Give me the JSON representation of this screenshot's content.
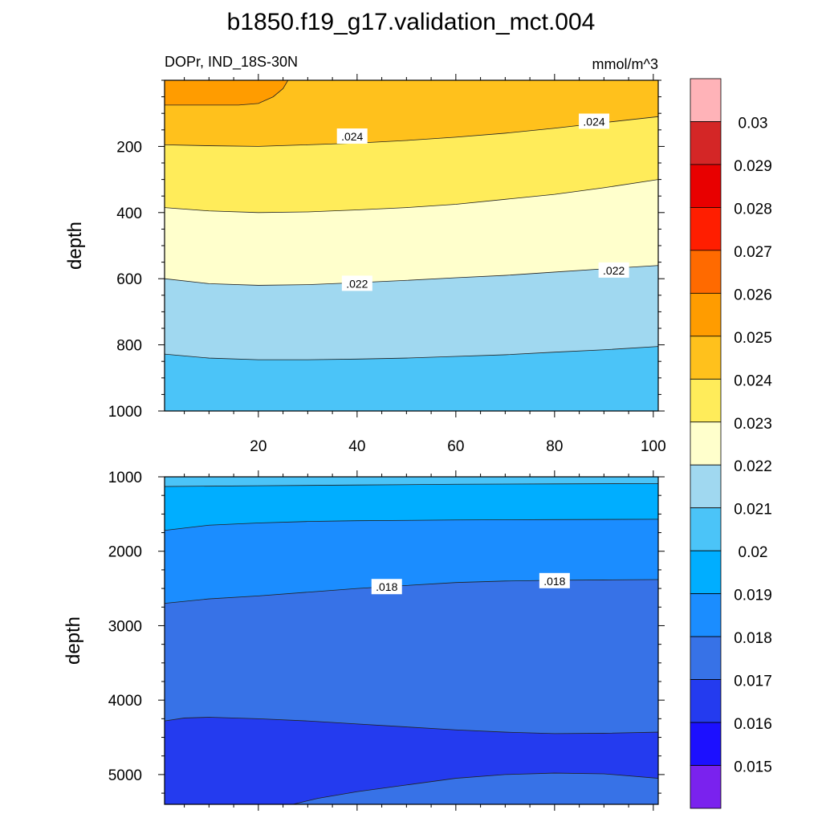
{
  "figure": {
    "title": "b1850.f19_g17.validation_mct.004",
    "left_string": "DOPr, IND_18S-30N",
    "right_string": "mmol/m^3"
  },
  "chart_data": [
    {
      "type": "contour",
      "panel": "upper",
      "title": "b1850.f19_g17.validation_mct.004",
      "left_string": "DOPr, IND_18S-30N",
      "right_string": "mmol/m^3",
      "xlabel": "",
      "ylabel": "depth",
      "xlim": [
        1,
        101
      ],
      "ylim": [
        0,
        1000
      ],
      "y_reversed": true,
      "x_ticks": [
        20,
        40,
        60,
        80,
        100
      ],
      "y_ticks": [
        200,
        400,
        600,
        800,
        1000
      ],
      "contour_lines": [
        {
          "level": 0.025,
          "x": [
            1,
            16,
            20,
            23,
            25,
            26
          ],
          "depth": [
            75,
            75,
            70,
            50,
            25,
            0
          ]
        },
        {
          "level": 0.024,
          "x": [
            1,
            10,
            20,
            30,
            40,
            50,
            60,
            70,
            80,
            90,
            101
          ],
          "depth": [
            195,
            198,
            200,
            195,
            190,
            182,
            172,
            160,
            145,
            128,
            110
          ]
        },
        {
          "level": 0.023,
          "x": [
            1,
            10,
            20,
            30,
            40,
            50,
            60,
            70,
            80,
            90,
            101
          ],
          "depth": [
            385,
            395,
            400,
            398,
            392,
            385,
            375,
            360,
            345,
            325,
            300
          ]
        },
        {
          "level": 0.022,
          "x": [
            1,
            10,
            20,
            30,
            40,
            50,
            60,
            70,
            80,
            90,
            101
          ],
          "depth": [
            600,
            615,
            620,
            618,
            612,
            605,
            597,
            590,
            580,
            570,
            560
          ]
        },
        {
          "level": 0.021,
          "x": [
            1,
            10,
            20,
            30,
            40,
            50,
            60,
            70,
            80,
            90,
            101
          ],
          "depth": [
            828,
            840,
            845,
            845,
            843,
            840,
            835,
            830,
            822,
            815,
            805
          ]
        }
      ],
      "contour_labels": [
        {
          "text": ".024",
          "x": 39,
          "depth": 170
        },
        {
          "text": ".024",
          "x": 88,
          "depth": 125
        },
        {
          "text": ".022",
          "x": 40,
          "depth": 615
        },
        {
          "text": ".022",
          "x": 92,
          "depth": 575
        }
      ]
    },
    {
      "type": "contour",
      "panel": "lower",
      "xlabel": "",
      "ylabel": "depth",
      "xlim": [
        1,
        101
      ],
      "ylim": [
        1000,
        5400
      ],
      "y_reversed": true,
      "y_ticks": [
        1000,
        2000,
        3000,
        4000,
        5000
      ],
      "contour_lines": [
        {
          "level": 0.02,
          "x": [
            1,
            20,
            40,
            60,
            80,
            101
          ],
          "depth": [
            1130,
            1120,
            1110,
            1100,
            1095,
            1090
          ]
        },
        {
          "level": 0.019,
          "x": [
            1,
            10,
            20,
            30,
            40,
            60,
            80,
            101
          ],
          "depth": [
            1720,
            1650,
            1620,
            1600,
            1590,
            1580,
            1575,
            1570
          ]
        },
        {
          "level": 0.018,
          "x": [
            1,
            10,
            20,
            30,
            40,
            50,
            60,
            70,
            80,
            90,
            101
          ],
          "depth": [
            2700,
            2640,
            2600,
            2550,
            2500,
            2460,
            2420,
            2400,
            2390,
            2385,
            2380
          ]
        },
        {
          "level": 0.017,
          "x": [
            1,
            5,
            10,
            20,
            30,
            40,
            50,
            60,
            70,
            80,
            90,
            101
          ],
          "depth": [
            4280,
            4240,
            4230,
            4250,
            4280,
            4320,
            4360,
            4400,
            4430,
            4450,
            4445,
            4430
          ]
        },
        {
          "level": 0.016,
          "x": [
            27,
            32,
            40,
            50,
            60,
            70,
            80,
            90,
            101
          ],
          "depth": [
            5400,
            5320,
            5230,
            5140,
            5050,
            5000,
            4980,
            4990,
            5050
          ]
        }
      ],
      "contour_labels": [
        {
          "text": ".018",
          "x": 46,
          "depth": 2480
        },
        {
          "text": ".018",
          "x": 80,
          "depth": 2400
        }
      ]
    }
  ],
  "colorbar": {
    "labels": [
      "0.03",
      "0.029",
      "0.028",
      "0.027",
      "0.026",
      "0.025",
      "0.024",
      "0.023",
      "0.022",
      "0.021",
      "0.02",
      "0.019",
      "0.018",
      "0.017",
      "0.016",
      "0.015"
    ],
    "colors": [
      "#FFB3B8",
      "#D42626",
      "#E80000",
      "#FF1E00",
      "#FF6A00",
      "#FF9C00",
      "#FFC11C",
      "#FFEC5A",
      "#FFFFCC",
      "#A0D8F0",
      "#4BC4F8",
      "#00AEFF",
      "#1B8DFF",
      "#3772E7",
      "#243BEF",
      "#1C10FF",
      "#7A22EE"
    ]
  }
}
